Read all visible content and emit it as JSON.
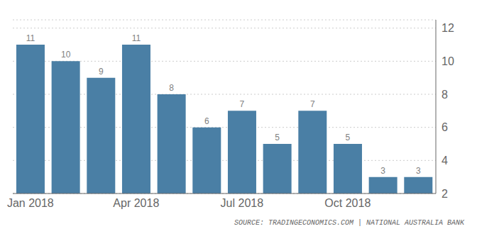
{
  "chart_data": {
    "type": "bar",
    "categories": [
      "Jan 2018",
      null,
      null,
      "Apr 2018",
      null,
      null,
      "Jul 2018",
      null,
      null,
      "Oct 2018",
      null,
      null
    ],
    "values": [
      11,
      10,
      9,
      11,
      8,
      6,
      7,
      5,
      7,
      5,
      3,
      3
    ],
    "color": "#4a7fa5",
    "ylim": [
      2,
      12.5
    ],
    "yticks": [
      2,
      4,
      6,
      8,
      10,
      12
    ],
    "grid": true,
    "data_labels": true,
    "annotation": "SOURCE: TRADINGECONOMICS.COM | NATIONAL AUSTRALIA BANK"
  }
}
